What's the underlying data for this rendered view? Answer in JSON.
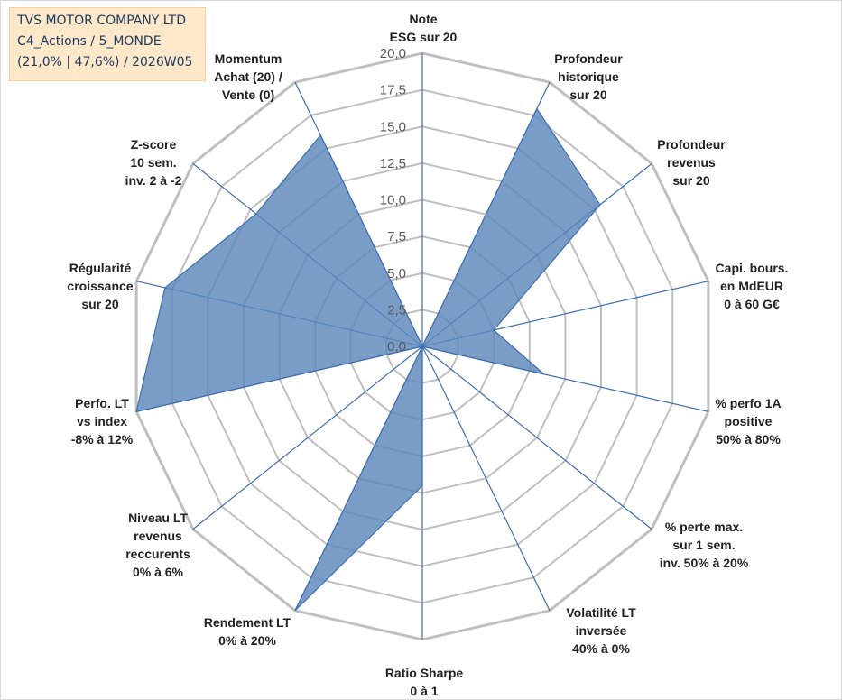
{
  "info": {
    "company": "TVS MOTOR COMPANY LTD",
    "category": "C4_Actions / 5_MONDE",
    "stats": "(21,0% | 47,6%) / 2026W05"
  },
  "colors": {
    "fill": "#5b87bb",
    "line": "#3f6fb0",
    "grid": "#bfbfbf",
    "background": "#ffffff"
  },
  "chart_data": {
    "type": "radar",
    "title": "",
    "rmin": 0,
    "rmax": 20,
    "tick_step": 2.5,
    "tick_labels": [
      "0,0",
      "2,5",
      "5,0",
      "7,5",
      "10,0",
      "12,5",
      "15,0",
      "17,5",
      "20,0"
    ],
    "axes": [
      {
        "lines": [
          "Note",
          "ESG sur 20"
        ],
        "value": 0
      },
      {
        "lines": [
          "Profondeur",
          "historique",
          "sur 20"
        ],
        "value": 18
      },
      {
        "lines": [
          "Profondeur",
          "revenus",
          "sur 20"
        ],
        "value": 15.5
      },
      {
        "lines": [
          "Capi. bours.",
          "en MdEUR",
          "0 à 60 G€"
        ],
        "value": 5
      },
      {
        "lines": [
          "% perfo 1A",
          "positive",
          "50% à 80%"
        ],
        "value": 8.5
      },
      {
        "lines": [
          "% perte max.",
          "sur 1 sem.",
          "inv. 50% à 20%"
        ],
        "value": 0
      },
      {
        "lines": [
          "Volatilité LT",
          "inversée",
          "40% à 0%"
        ],
        "value": 0
      },
      {
        "lines": [
          "Ratio Sharpe",
          "0 à 1"
        ],
        "value": 9.5
      },
      {
        "lines": [
          "Rendement LT",
          "0% à 20%"
        ],
        "value": 20
      },
      {
        "lines": [
          "Niveau LT",
          "revenus",
          "reccurents",
          "0% à 6%"
        ],
        "value": 0
      },
      {
        "lines": [
          "Perfo. LT",
          "vs index",
          "-8% à 12%"
        ],
        "value": 20
      },
      {
        "lines": [
          "Régularité",
          "croissance",
          "sur 20"
        ],
        "value": 18
      },
      {
        "lines": [
          "Z-score",
          "10 sem.",
          "inv. 2 à -2"
        ],
        "value": 14.5
      },
      {
        "lines": [
          "Momentum",
          "Achat (20) /",
          "Vente (0)"
        ],
        "value": 16
      }
    ]
  }
}
